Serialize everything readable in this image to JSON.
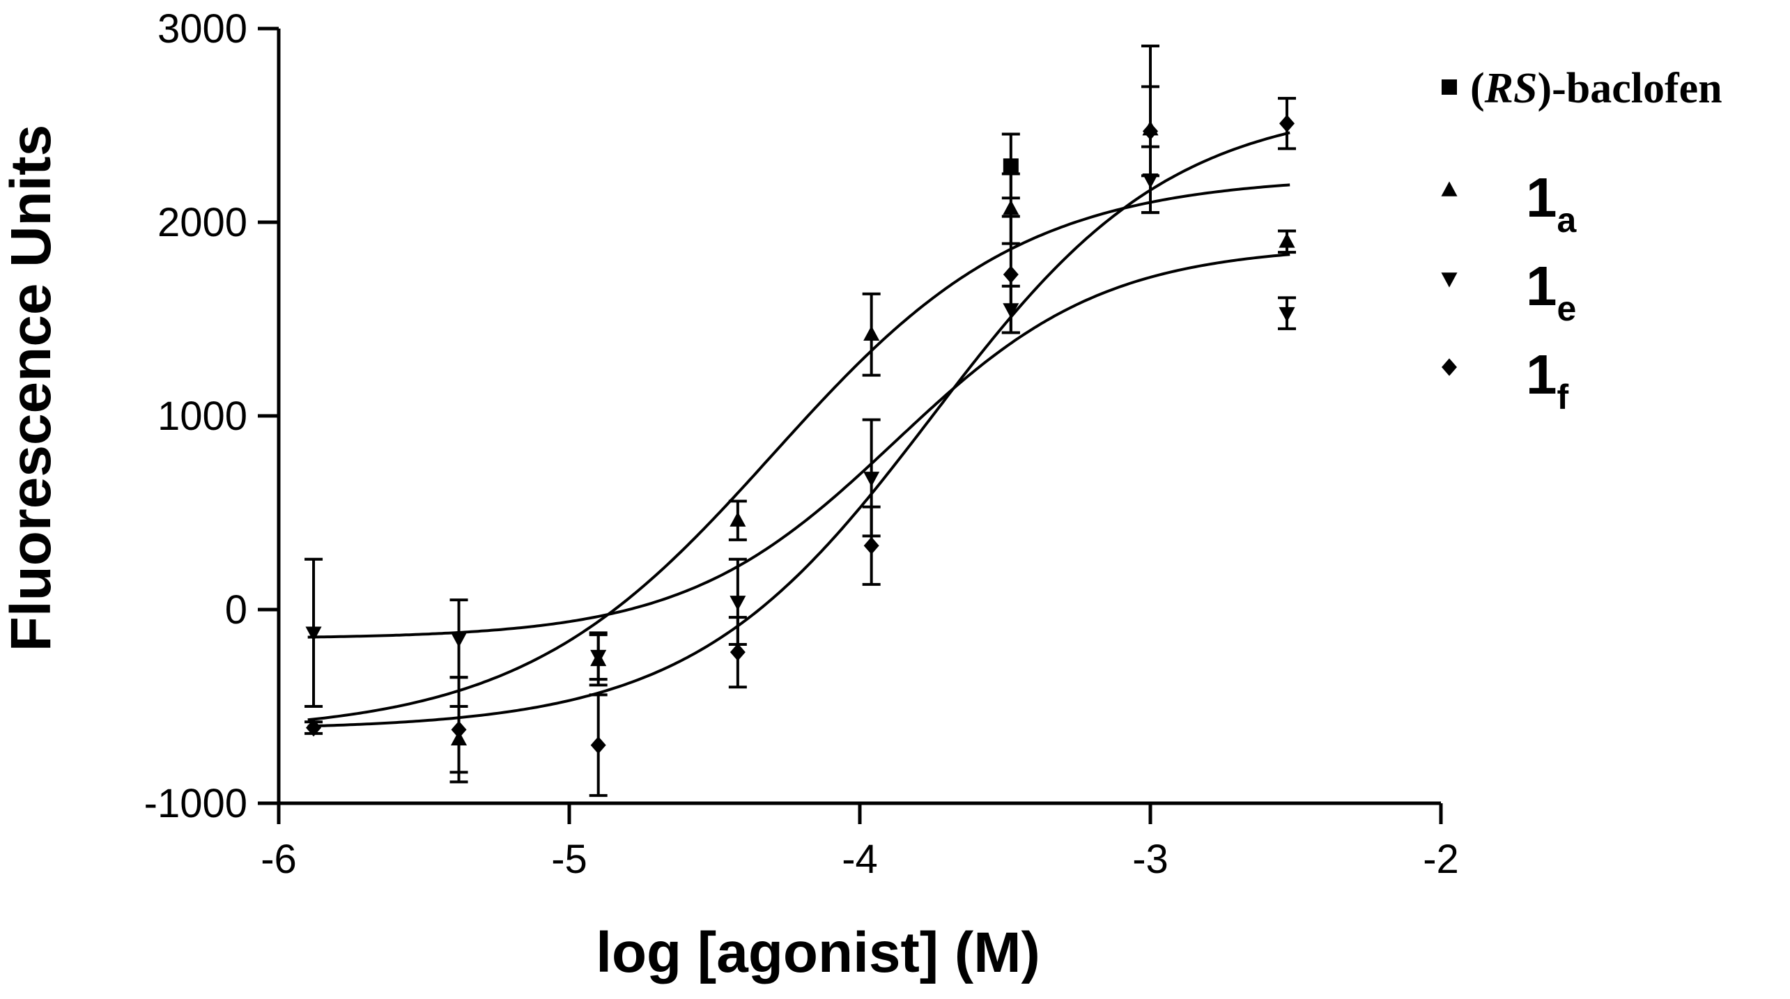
{
  "chart_data": {
    "type": "scatter",
    "xlabel": "log [agonist] (M)",
    "ylabel": "Fluorescence Units",
    "xlim": [
      -6,
      -2
    ],
    "ylim": [
      -1000,
      3000
    ],
    "xticks": [
      -6,
      -5,
      -4,
      -3,
      -2
    ],
    "yticks": [
      -1000,
      0,
      1000,
      2000,
      3000
    ],
    "xtick_labels": [
      "-6",
      "-5",
      "-4",
      "-3",
      "-2"
    ],
    "ytick_labels": [
      "-1000",
      "0",
      "1000",
      "2000",
      "3000"
    ],
    "legend_position": "top-right",
    "series": [
      {
        "name": "(RS)-baclofen",
        "label_parts": [
          "(",
          "RS",
          ")-baclofen"
        ],
        "marker": "square",
        "points": [
          {
            "x": -3.48,
            "y": 2290,
            "err": 165
          }
        ],
        "curve": null
      },
      {
        "name": "1a",
        "label_main": "1",
        "label_sub": "a",
        "marker": "triangle-up",
        "points": [
          {
            "x": -5.38,
            "y": -670,
            "err": 170
          },
          {
            "x": -4.9,
            "y": -260,
            "err": 130
          },
          {
            "x": -4.42,
            "y": 460,
            "err": 100
          },
          {
            "x": -3.96,
            "y": 1420,
            "err": 210
          },
          {
            "x": -3.48,
            "y": 2070,
            "err": 180
          },
          {
            "x": -3.0,
            "y": 2480,
            "err": 430
          },
          {
            "x": -2.53,
            "y": 1900,
            "err": 55
          }
        ],
        "curve": {
          "bottom": -640,
          "top": 2240,
          "logEC50": -4.3,
          "hill": 1.0
        }
      },
      {
        "name": "1e",
        "label_main": "1",
        "label_sub": "e",
        "marker": "triangle-down",
        "points": [
          {
            "x": -5.88,
            "y": -120,
            "err": 380
          },
          {
            "x": -5.38,
            "y": -150,
            "err": 200
          },
          {
            "x": -4.9,
            "y": -240,
            "err": 120
          },
          {
            "x": -4.42,
            "y": 40,
            "err": 220
          },
          {
            "x": -3.96,
            "y": 680,
            "err": 300
          },
          {
            "x": -3.48,
            "y": 1550,
            "err": 120
          },
          {
            "x": -3.0,
            "y": 2220,
            "err": 170
          },
          {
            "x": -2.53,
            "y": 1530,
            "err": 80
          }
        ],
        "curve": {
          "bottom": -150,
          "top": 1880,
          "logEC50": -3.88,
          "hill": 1.2
        }
      },
      {
        "name": "1f",
        "label_main": "1",
        "label_sub": "f",
        "marker": "diamond",
        "points": [
          {
            "x": -5.88,
            "y": -610,
            "err": 30
          },
          {
            "x": -5.38,
            "y": -620,
            "err": 270
          },
          {
            "x": -4.9,
            "y": -700,
            "err": 260
          },
          {
            "x": -4.42,
            "y": -220,
            "err": 180
          },
          {
            "x": -3.96,
            "y": 330,
            "err": 200
          },
          {
            "x": -3.48,
            "y": 1730,
            "err": 300
          },
          {
            "x": -3.0,
            "y": 2470,
            "err": 230
          },
          {
            "x": -2.53,
            "y": 2510,
            "err": 130
          }
        ],
        "curve": {
          "bottom": -620,
          "top": 2620,
          "logEC50": -3.75,
          "hill": 1.05
        }
      }
    ]
  }
}
